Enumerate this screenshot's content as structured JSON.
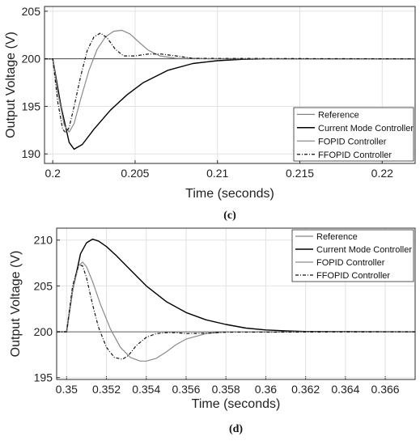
{
  "chart_data": [
    {
      "type": "line",
      "panel_label": "(c)",
      "xlabel": "Time (seconds)",
      "ylabel": "Output Voltage (V)",
      "xlim": [
        0.1995,
        0.222
      ],
      "ylim": [
        189,
        205.5
      ],
      "xticks": [
        0.2,
        0.205,
        0.21,
        0.215,
        0.22
      ],
      "xtick_labels": [
        "0.2",
        "0.205",
        "0.21",
        "0.215",
        "0.22"
      ],
      "yticks": [
        190,
        195,
        200,
        205
      ],
      "ytick_labels": [
        "190",
        "195",
        "200",
        "205"
      ],
      "grid": true,
      "legend_position": "bottom-right",
      "legend": [
        "Reference",
        "Current Mode Controller",
        "FOPID Controller",
        "FFOPID Controller"
      ],
      "series": [
        {
          "name": "Reference",
          "color": "#333333",
          "width": 0.8,
          "dash": "",
          "x": [
            0.1995,
            0.222
          ],
          "y": [
            200,
            200
          ]
        },
        {
          "name": "Current Mode Controller",
          "color": "#000000",
          "width": 1.4,
          "dash": "",
          "x": [
            0.1995,
            0.2,
            0.2005,
            0.201,
            0.2013,
            0.2018,
            0.2025,
            0.2035,
            0.2045,
            0.2055,
            0.207,
            0.2085,
            0.21,
            0.2115,
            0.213,
            0.215,
            0.222
          ],
          "y": [
            200,
            200,
            195.0,
            191.2,
            190.5,
            191.0,
            192.6,
            194.6,
            196.2,
            197.5,
            198.8,
            199.5,
            199.8,
            199.95,
            200,
            200,
            200
          ]
        },
        {
          "name": "FOPID Controller",
          "color": "#8a8a8a",
          "width": 1.2,
          "dash": "",
          "x": [
            0.1995,
            0.2,
            0.2003,
            0.2007,
            0.201,
            0.2013,
            0.2017,
            0.2022,
            0.2027,
            0.2032,
            0.2037,
            0.2042,
            0.2047,
            0.2052,
            0.2058,
            0.2065,
            0.2075,
            0.2085,
            0.2095,
            0.222
          ],
          "y": [
            200,
            200,
            196.5,
            193.0,
            192.3,
            193.2,
            195.8,
            198.8,
            201.0,
            202.3,
            202.9,
            203.0,
            202.6,
            201.8,
            200.9,
            200.3,
            200.05,
            200.05,
            200,
            200
          ]
        },
        {
          "name": "FFOPID Controller",
          "color": "#111111",
          "width": 1.2,
          "dash": "4,2,1,2",
          "x": [
            0.1995,
            0.2,
            0.2003,
            0.2006,
            0.2008,
            0.201,
            0.2013,
            0.2017,
            0.2021,
            0.2025,
            0.2029,
            0.2033,
            0.2038,
            0.2043,
            0.205,
            0.2058,
            0.2066,
            0.2075,
            0.2085,
            0.222
          ],
          "y": [
            200,
            200,
            195.5,
            192.6,
            192.2,
            192.8,
            195.0,
            198.2,
            200.9,
            202.3,
            202.7,
            202.2,
            201.0,
            200.3,
            200.3,
            200.5,
            200.5,
            200.3,
            200.05,
            200
          ]
        }
      ]
    },
    {
      "type": "line",
      "panel_label": "(d)",
      "xlabel": "Time (seconds)",
      "ylabel": "Output Voltage (V)",
      "xlim": [
        0.3495,
        0.3675
      ],
      "ylim": [
        194.8,
        211.3
      ],
      "xticks": [
        0.35,
        0.352,
        0.354,
        0.356,
        0.358,
        0.36,
        0.362,
        0.364,
        0.366
      ],
      "xtick_labels": [
        "0.35",
        "0.352",
        "0.354",
        "0.356",
        "0.358",
        "0.36",
        "0.362",
        "0.364",
        "0.366"
      ],
      "yticks": [
        195,
        200,
        205,
        210
      ],
      "ytick_labels": [
        "195",
        "200",
        "205",
        "210"
      ],
      "grid": true,
      "legend_position": "top-right",
      "legend": [
        "Reference",
        "Current Mode Controller",
        "FOPID Controller",
        "FFOPID Controller"
      ],
      "series": [
        {
          "name": "Reference",
          "color": "#333333",
          "width": 0.8,
          "dash": "",
          "x": [
            0.3495,
            0.3675
          ],
          "y": [
            200,
            200
          ]
        },
        {
          "name": "Current Mode Controller",
          "color": "#000000",
          "width": 1.4,
          "dash": "",
          "x": [
            0.3495,
            0.35,
            0.3503,
            0.3507,
            0.351,
            0.3513,
            0.3516,
            0.352,
            0.3525,
            0.353,
            0.3535,
            0.354,
            0.355,
            0.356,
            0.357,
            0.358,
            0.359,
            0.36,
            0.361,
            0.362,
            0.3675
          ],
          "y": [
            200,
            200,
            204.5,
            208.5,
            209.7,
            210.1,
            209.9,
            209.3,
            208.3,
            207.2,
            206.1,
            205.0,
            203.3,
            202.1,
            201.3,
            200.8,
            200.4,
            200.2,
            200.1,
            200.03,
            200
          ]
        },
        {
          "name": "FOPID Controller",
          "color": "#8a8a8a",
          "width": 1.2,
          "dash": "",
          "x": [
            0.3495,
            0.35,
            0.3503,
            0.3506,
            0.3508,
            0.351,
            0.3513,
            0.3517,
            0.3522,
            0.3527,
            0.3532,
            0.3537,
            0.354,
            0.3545,
            0.355,
            0.3555,
            0.356,
            0.357,
            0.358,
            0.359,
            0.3675
          ],
          "y": [
            200,
            200,
            204.5,
            207.2,
            207.6,
            207.1,
            205.5,
            203.0,
            200.3,
            198.3,
            197.2,
            196.8,
            196.8,
            197.1,
            197.8,
            198.6,
            199.2,
            199.8,
            200.0,
            200.0,
            200
          ]
        },
        {
          "name": "FFOPID Controller",
          "color": "#111111",
          "width": 1.2,
          "dash": "4,2,1,2",
          "x": [
            0.3495,
            0.35,
            0.3503,
            0.3506,
            0.3508,
            0.351,
            0.3513,
            0.3516,
            0.352,
            0.3524,
            0.3528,
            0.3531,
            0.3535,
            0.354,
            0.3545,
            0.355,
            0.3555,
            0.356,
            0.357,
            0.358,
            0.3675
          ],
          "y": [
            200,
            200,
            205.0,
            207.3,
            207.2,
            205.9,
            203.0,
            200.5,
            198.3,
            197.2,
            197.0,
            197.4,
            198.5,
            199.4,
            199.8,
            199.9,
            199.9,
            199.8,
            199.85,
            199.95,
            200
          ]
        }
      ]
    }
  ]
}
